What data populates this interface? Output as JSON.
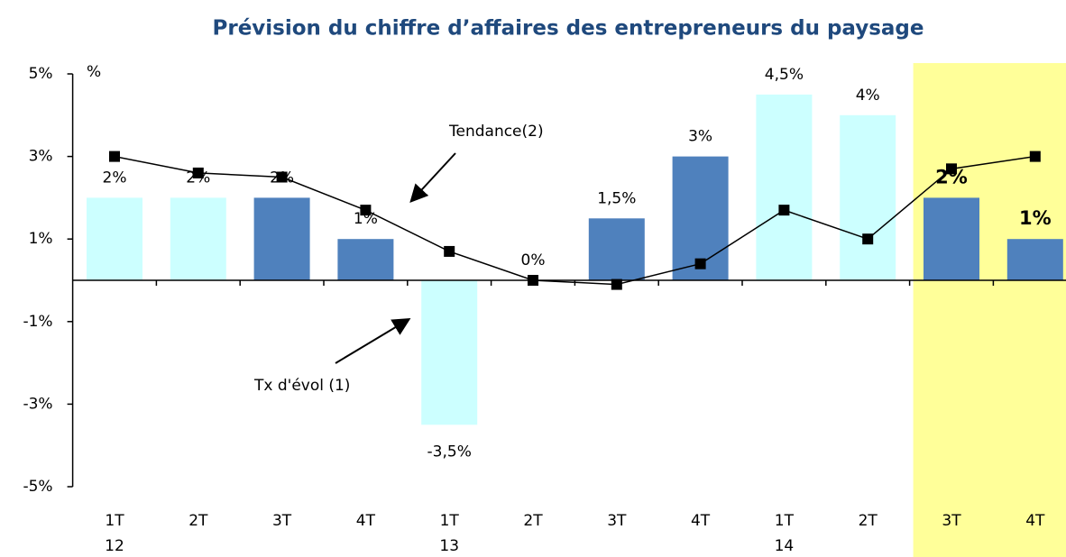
{
  "chart_data": {
    "type": "bar",
    "title": "Prévision du chiffre d’affaires des entrepreneurs du paysage",
    "y_unit": "%",
    "categories": [
      "1T",
      "2T",
      "3T",
      "4T",
      "1T",
      "2T",
      "3T",
      "4T",
      "1T",
      "2T",
      "3T",
      "4T"
    ],
    "years": [
      "12",
      null,
      null,
      null,
      "13",
      null,
      null,
      null,
      "14",
      null,
      null,
      null
    ],
    "series": [
      {
        "name": "Tx d'évol (1)",
        "type": "bar",
        "values": [
          2,
          2,
          2,
          1,
          -3.5,
          0,
          1.5,
          3,
          4.5,
          4,
          2,
          1
        ],
        "value_labels": [
          "2%",
          "2%",
          "2%",
          "1%",
          "-3,5%",
          "0%",
          "1,5%",
          "3%",
          "4,5%",
          "4%",
          "2%",
          "1%"
        ],
        "colors": [
          "#ccffff",
          "#ccffff",
          "#4f81bd",
          "#4f81bd",
          "#ccffff",
          "#4f81bd",
          "#4f81bd",
          "#4f81bd",
          "#ccffff",
          "#ccffff",
          "#4f81bd",
          "#4f81bd"
        ]
      },
      {
        "name": "Tendance(2)",
        "type": "line",
        "color": "#000000",
        "values": [
          3,
          2.6,
          2.5,
          1.7,
          0.7,
          0,
          -0.1,
          0.4,
          1.7,
          1,
          2.7,
          3
        ]
      }
    ],
    "highlight": {
      "categories": [
        10,
        11
      ],
      "color": "#ffff99"
    },
    "ylim": [
      -5,
      5
    ],
    "yticks": [
      {
        "value": 5,
        "label": "5%"
      },
      {
        "value": 3,
        "label": "3%"
      },
      {
        "value": 1,
        "label": "1%"
      },
      {
        "value": -1,
        "label": "-1%"
      },
      {
        "value": -3,
        "label": "-3%"
      },
      {
        "value": -5,
        "label": "-5%"
      }
    ],
    "grid": false
  }
}
